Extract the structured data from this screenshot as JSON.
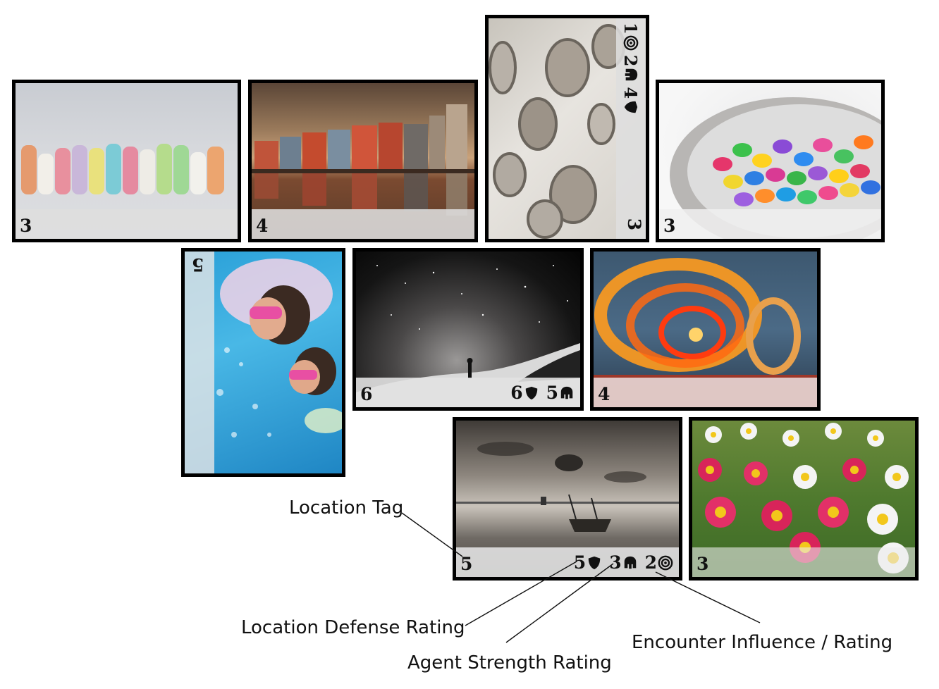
{
  "cards": {
    "chalk": {
      "tag": "3"
    },
    "houses": {
      "tag": "4"
    },
    "petri": {
      "tag": "3",
      "defense": "4",
      "strength": "2",
      "influence": "1"
    },
    "candy": {
      "tag": "3"
    },
    "pool": {
      "tag": "5"
    },
    "milkyway": {
      "tag": "6",
      "defense": "6",
      "strength": "5"
    },
    "ferris": {
      "tag": "4"
    },
    "boat": {
      "tag": "5",
      "defense": "5",
      "strength": "3",
      "influence": "2"
    },
    "flowers": {
      "tag": "3"
    }
  },
  "annotations": {
    "location_tag": "Location Tag",
    "location_defense": "Location Defense Rating",
    "agent_strength": "Agent Strength Rating",
    "encounter_influence": "Encounter Influence / Rating"
  },
  "icons": [
    "shield-icon",
    "helmet-icon",
    "target-icon"
  ]
}
